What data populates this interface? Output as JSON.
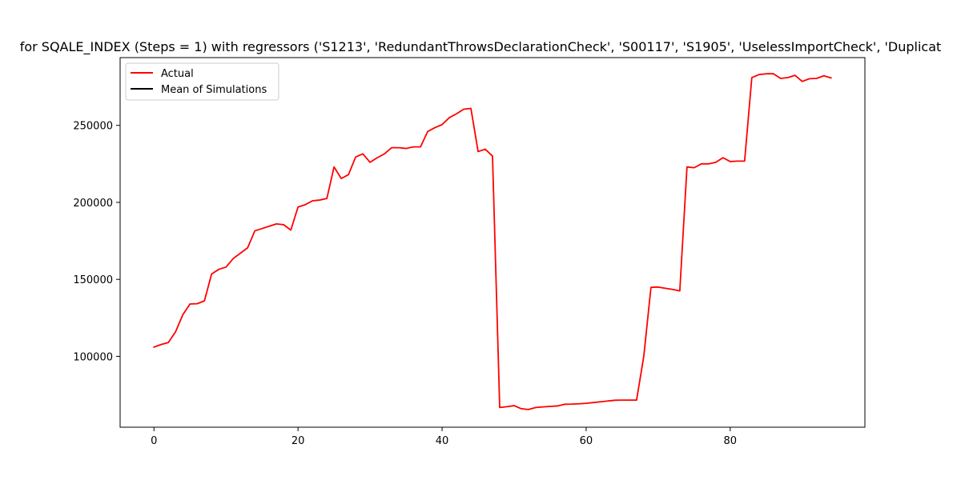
{
  "chart_data": {
    "type": "line",
    "title": "for SQALE_INDEX (Steps = 1) with regressors ('S1213', 'RedundantThrowsDeclarationCheck', 'S00117', 'S1905', 'UselessImportCheck', 'Duplicat",
    "xlabel": "",
    "ylabel": "",
    "xlim": [
      -4.7,
      98.7
    ],
    "ylim": [
      54000,
      294000
    ],
    "xticks": [
      0,
      20,
      40,
      60,
      80
    ],
    "xtick_labels": [
      "0",
      "20",
      "40",
      "60",
      "80"
    ],
    "yticks": [
      100000,
      150000,
      200000,
      250000
    ],
    "ytick_labels": [
      "100000",
      "150000",
      "200000",
      "250000"
    ],
    "grid": false,
    "legend_position": "top-left",
    "series": [
      {
        "name": "Actual",
        "color": "#ff0000",
        "x": [
          0,
          1,
          2,
          3,
          4,
          5,
          6,
          7,
          8,
          9,
          10,
          11,
          12,
          13,
          14,
          15,
          16,
          17,
          18,
          19,
          20,
          21,
          22,
          23,
          24,
          25,
          26,
          27,
          28,
          29,
          30,
          31,
          32,
          33,
          34,
          35,
          36,
          37,
          38,
          39,
          40,
          41,
          42,
          43,
          44,
          45,
          46,
          47,
          48,
          49,
          50,
          51,
          52,
          53,
          54,
          55,
          56,
          57,
          58,
          59,
          60,
          61,
          62,
          63,
          64,
          65,
          66,
          67,
          68,
          69,
          70,
          71,
          72,
          73,
          74,
          75,
          76,
          77,
          78,
          79,
          80,
          81,
          82,
          83,
          84,
          85,
          86,
          87,
          88,
          89,
          90,
          91,
          92,
          93,
          94
        ],
        "values": [
          106000,
          107700,
          109000,
          116000,
          127000,
          134000,
          134200,
          136000,
          153500,
          156500,
          158000,
          163500,
          167000,
          170500,
          181500,
          183000,
          184500,
          186000,
          185500,
          182000,
          197000,
          198500,
          201000,
          201500,
          202500,
          223000,
          215500,
          218000,
          229500,
          231500,
          226000,
          229000,
          231500,
          235500,
          235500,
          235000,
          236000,
          236000,
          246000,
          248500,
          250500,
          255000,
          257500,
          260500,
          261000,
          233000,
          234500,
          230000,
          66800,
          67300,
          68000,
          66000,
          65500,
          66800,
          67200,
          67500,
          67800,
          68900,
          69000,
          69200,
          69500,
          70000,
          70500,
          71000,
          71500,
          71600,
          71600,
          71600,
          100000,
          144800,
          145000,
          144200,
          143500,
          142500,
          223000,
          222500,
          225000,
          225000,
          226000,
          229000,
          226500,
          226800,
          226800,
          281000,
          283000,
          283500,
          283500,
          280500,
          281000,
          282500,
          278500,
          280300,
          280500,
          282200,
          280800
        ]
      },
      {
        "name": "Mean of Simulations",
        "color": "#000000",
        "x": [],
        "values": []
      }
    ]
  }
}
